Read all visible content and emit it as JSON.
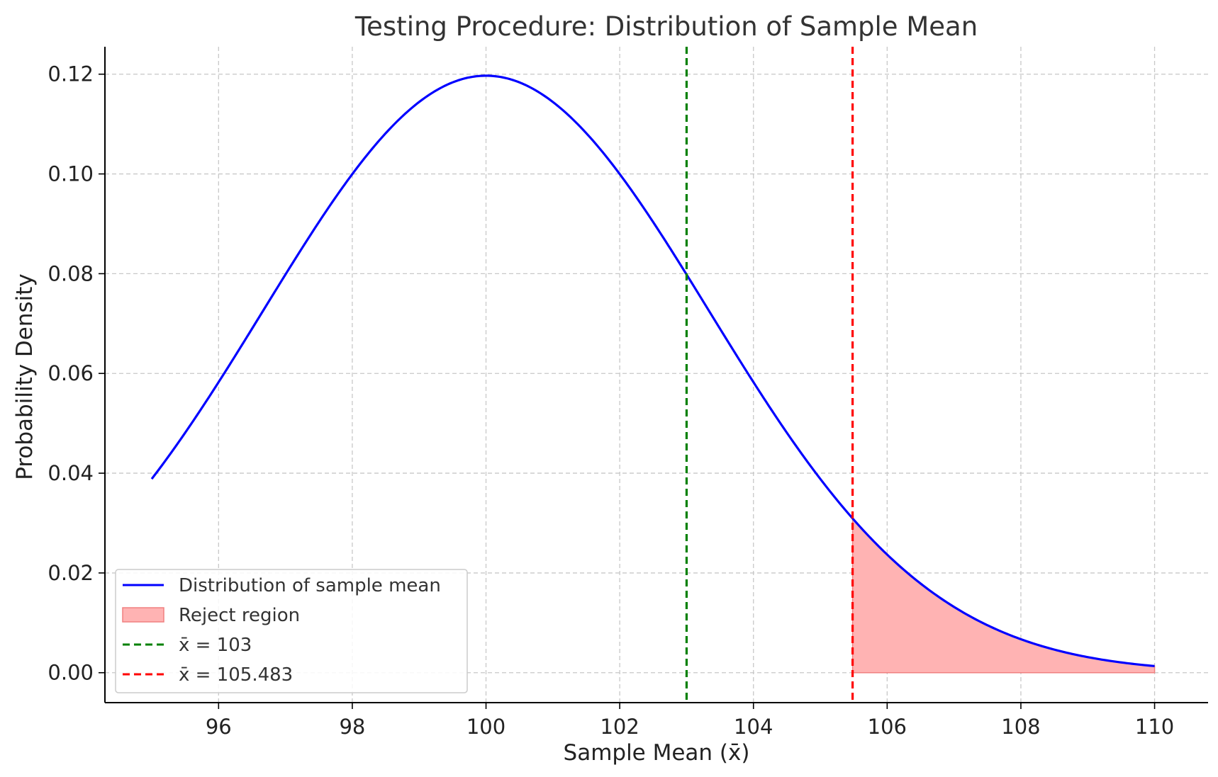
{
  "chart_data": {
    "type": "line",
    "title": "Testing Procedure: Distribution of Sample Mean",
    "xlabel": "Sample Mean (x̄)",
    "ylabel": "Probability Density",
    "xlim": [
      94.3,
      110.8
    ],
    "ylim": [
      -0.006,
      0.1255
    ],
    "xticks": [
      96,
      98,
      100,
      102,
      104,
      106,
      108,
      110
    ],
    "yticks": [
      0.0,
      0.02,
      0.04,
      0.06,
      0.08,
      0.1,
      0.12
    ],
    "grid": true,
    "legend_position": "lower-left",
    "series": [
      {
        "name": "Distribution of sample mean",
        "kind": "line",
        "color": "#0000ff",
        "distribution": "normal",
        "mean": 100,
        "std_dev": 3.333,
        "x_range": [
          95,
          110
        ]
      }
    ],
    "shaded_region": {
      "name": "Reject region",
      "color": "#ff9999",
      "edge_color": "#f08080",
      "x_from": 105.483,
      "x_to": 110
    },
    "vlines": [
      {
        "name": "x̄ = 103",
        "x": 103,
        "color": "#008000"
      },
      {
        "name": "x̄ = 105.483",
        "x": 105.483,
        "color": "#ff0000"
      }
    ]
  }
}
